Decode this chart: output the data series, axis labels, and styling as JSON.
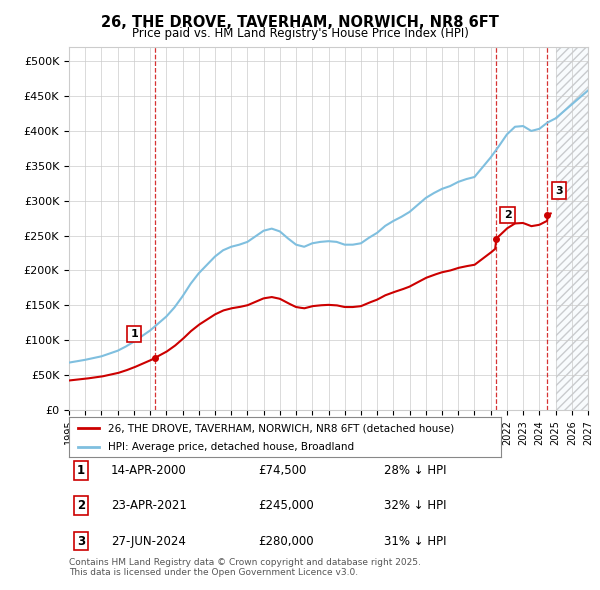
{
  "title": "26, THE DROVE, TAVERHAM, NORWICH, NR8 6FT",
  "subtitle": "Price paid vs. HM Land Registry's House Price Index (HPI)",
  "ylim": [
    0,
    520000
  ],
  "yticks": [
    0,
    50000,
    100000,
    150000,
    200000,
    250000,
    300000,
    350000,
    400000,
    450000,
    500000
  ],
  "ytick_labels": [
    "£0",
    "£50K",
    "£100K",
    "£150K",
    "£200K",
    "£250K",
    "£300K",
    "£350K",
    "£400K",
    "£450K",
    "£500K"
  ],
  "hpi_color": "#7fbfdf",
  "price_color": "#cc0000",
  "vline_color": "#cc0000",
  "background_color": "#ffffff",
  "grid_color": "#cccccc",
  "legend_house": "26, THE DROVE, TAVERHAM, NORWICH, NR8 6FT (detached house)",
  "legend_hpi": "HPI: Average price, detached house, Broadland",
  "sale1_label": "1",
  "sale1_date": "14-APR-2000",
  "sale1_price": "£74,500",
  "sale1_hpi": "28% ↓ HPI",
  "sale2_label": "2",
  "sale2_date": "23-APR-2021",
  "sale2_price": "£245,000",
  "sale2_hpi": "32% ↓ HPI",
  "sale3_label": "3",
  "sale3_date": "27-JUN-2024",
  "sale3_price": "£280,000",
  "sale3_hpi": "31% ↓ HPI",
  "footer": "Contains HM Land Registry data © Crown copyright and database right 2025.\nThis data is licensed under the Open Government Licence v3.0.",
  "sale1_x": 2000.28,
  "sale1_y": 74500,
  "sale2_x": 2021.31,
  "sale2_y": 245000,
  "sale3_x": 2024.49,
  "sale3_y": 280000,
  "xlim_left": 1995,
  "xlim_right": 2027,
  "hatch_start": 2025.0,
  "hpi_years": [
    1995.0,
    1995.5,
    1996.0,
    1996.5,
    1997.0,
    1997.5,
    1998.0,
    1998.5,
    1999.0,
    1999.5,
    2000.0,
    2000.5,
    2001.0,
    2001.5,
    2002.0,
    2002.5,
    2003.0,
    2003.5,
    2004.0,
    2004.5,
    2005.0,
    2005.5,
    2006.0,
    2006.5,
    2007.0,
    2007.5,
    2008.0,
    2008.5,
    2009.0,
    2009.5,
    2010.0,
    2010.5,
    2011.0,
    2011.5,
    2012.0,
    2012.5,
    2013.0,
    2013.5,
    2014.0,
    2014.5,
    2015.0,
    2015.5,
    2016.0,
    2016.5,
    2017.0,
    2017.5,
    2018.0,
    2018.5,
    2019.0,
    2019.5,
    2020.0,
    2020.5,
    2021.0,
    2021.5,
    2022.0,
    2022.5,
    2023.0,
    2023.5,
    2024.0,
    2024.5,
    2025.0,
    2026.0,
    2027.0
  ],
  "hpi_values": [
    68000,
    70000,
    72000,
    74500,
    77000,
    81000,
    85000,
    91000,
    98000,
    106000,
    114000,
    124000,
    134000,
    147000,
    163000,
    181000,
    196000,
    208000,
    220000,
    229000,
    234000,
    237000,
    241000,
    249000,
    257000,
    260000,
    256000,
    246000,
    237000,
    234000,
    239000,
    241000,
    242000,
    241000,
    237000,
    237000,
    239000,
    247000,
    254000,
    264000,
    271000,
    277000,
    284000,
    294000,
    304000,
    311000,
    317000,
    321000,
    327000,
    331000,
    334000,
    348000,
    362000,
    378000,
    395000,
    406000,
    407000,
    400000,
    403000,
    412000,
    418000,
    438000,
    458000
  ]
}
